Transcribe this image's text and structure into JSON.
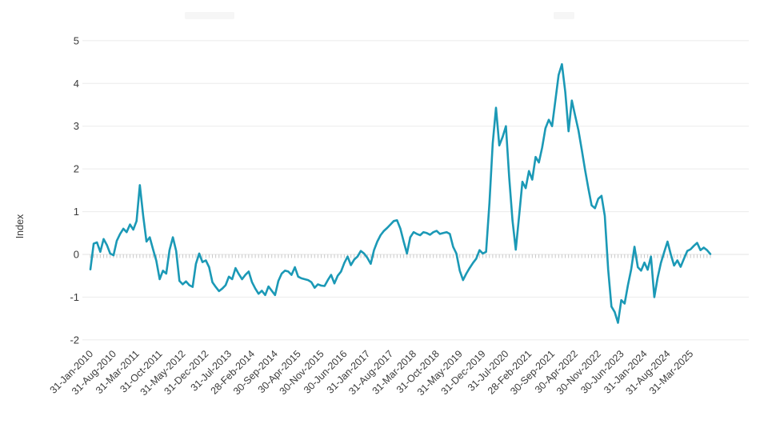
{
  "colors": {
    "line": "#1b99b6",
    "grid": "#ebebeb",
    "zero_line": "#e3e3e3",
    "month_tick": "#c9c9c9",
    "axis_text": "#3a3a3a"
  },
  "chart_data": {
    "type": "line",
    "title": "",
    "xlabel": "",
    "ylabel": "Index",
    "frequency": "monthly",
    "start_month": "Jan-2010",
    "end_month": "Sep-2025",
    "ylim": [
      -2,
      5
    ],
    "y_ticks": [
      5,
      4,
      3,
      2,
      1,
      0,
      -1,
      -2
    ],
    "grid": "horizontal",
    "legend_position": "none",
    "x_tick_labels": [
      "31-Jan-2010",
      "31-Aug-2010",
      "31-Mar-2011",
      "31-Oct-2011",
      "31-May-2012",
      "31-Dec-2012",
      "31-Jul-2013",
      "28-Feb-2014",
      "30-Sep-2014",
      "30-Apr-2015",
      "30-Nov-2015",
      "30-Jun-2016",
      "31-Jan-2017",
      "31-Aug-2017",
      "31-Mar-2018",
      "31-Oct-2018",
      "31-May-2019",
      "31-Dec-2019",
      "31-Jul-2020",
      "28-Feb-2021",
      "30-Sep-2021",
      "30-Apr-2022",
      "30-Nov-2022",
      "30-Jun-2023",
      "31-Jan-2024",
      "31-Aug-2024",
      "31-Mar-2025"
    ],
    "x_tick_label_interval_months": 7,
    "series": [
      {
        "name": "Index",
        "values": [
          -0.35,
          0.25,
          0.28,
          0.06,
          0.36,
          0.22,
          0.02,
          -0.02,
          0.32,
          0.48,
          0.6,
          0.52,
          0.7,
          0.58,
          0.78,
          1.62,
          0.9,
          0.3,
          0.4,
          0.12,
          -0.15,
          -0.58,
          -0.38,
          -0.45,
          0.1,
          0.4,
          0.08,
          -0.62,
          -0.7,
          -0.63,
          -0.72,
          -0.76,
          -0.22,
          0.02,
          -0.18,
          -0.14,
          -0.3,
          -0.65,
          -0.76,
          -0.86,
          -0.8,
          -0.72,
          -0.52,
          -0.58,
          -0.32,
          -0.46,
          -0.58,
          -0.48,
          -0.4,
          -0.65,
          -0.8,
          -0.92,
          -0.85,
          -0.95,
          -0.75,
          -0.85,
          -0.95,
          -0.62,
          -0.45,
          -0.38,
          -0.4,
          -0.48,
          -0.3,
          -0.52,
          -0.56,
          -0.58,
          -0.6,
          -0.65,
          -0.78,
          -0.7,
          -0.73,
          -0.74,
          -0.6,
          -0.48,
          -0.68,
          -0.5,
          -0.4,
          -0.2,
          -0.05,
          -0.25,
          -0.12,
          -0.05,
          0.08,
          0.02,
          -0.08,
          -0.22,
          0.1,
          0.3,
          0.45,
          0.55,
          0.62,
          0.7,
          0.78,
          0.8,
          0.6,
          0.3,
          0.02,
          0.4,
          0.52,
          0.48,
          0.45,
          0.52,
          0.5,
          0.46,
          0.52,
          0.55,
          0.48,
          0.5,
          0.52,
          0.48,
          0.18,
          0.02,
          -0.38,
          -0.6,
          -0.45,
          -0.32,
          -0.2,
          -0.1,
          0.1,
          0.02,
          0.06,
          1.2,
          2.6,
          3.43,
          2.55,
          2.75,
          3.0,
          1.8,
          0.8,
          0.11,
          0.9,
          1.7,
          1.55,
          1.95,
          1.75,
          2.28,
          2.15,
          2.5,
          2.95,
          3.15,
          3.0,
          3.6,
          4.2,
          4.45,
          3.8,
          2.88,
          3.6,
          3.25,
          2.9,
          2.45,
          1.98,
          1.55,
          1.15,
          1.08,
          1.3,
          1.37,
          0.9,
          -0.35,
          -1.22,
          -1.35,
          -1.6,
          -1.07,
          -1.15,
          -0.72,
          -0.35,
          0.18,
          -0.3,
          -0.38,
          -0.19,
          -0.36,
          -0.05,
          -1.0,
          -0.55,
          -0.2,
          0.05,
          0.3,
          0.0,
          -0.26,
          -0.14,
          -0.29,
          -0.1,
          0.08,
          0.12,
          0.2,
          0.27,
          0.1,
          0.16,
          0.1,
          0.01
        ]
      }
    ]
  }
}
